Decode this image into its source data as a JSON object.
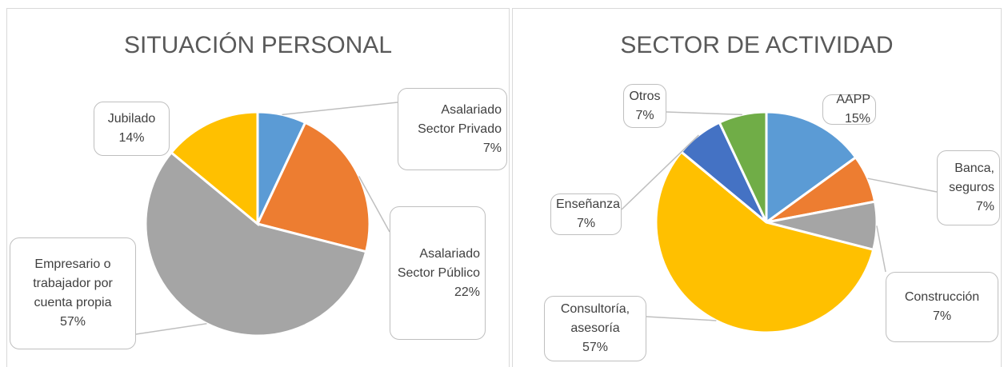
{
  "chart_data": [
    {
      "type": "pie",
      "title": "SITUACIÓN PERSONAL",
      "categories": [
        "Asalariado Sector Privado",
        "Asalariado Sector Público",
        "Empresario o trabajador por cuenta propia",
        "Jubilado"
      ],
      "values": [
        7,
        22,
        57,
        14
      ],
      "value_labels": [
        "7%",
        "22%",
        "57%",
        "14%"
      ],
      "colors": [
        "#5b9bd5",
        "#ed7d31",
        "#a5a5a5",
        "#ffc000"
      ]
    },
    {
      "type": "pie",
      "title": "SECTOR DE ACTIVIDAD",
      "categories": [
        "AAPP",
        "Banca, seguros",
        "Construcción",
        "Consultoría, asesoría",
        "Enseñanza",
        "Otros"
      ],
      "values": [
        15,
        7,
        7,
        57,
        7,
        7
      ],
      "value_labels": [
        "15%",
        "7%",
        "7%",
        "57%",
        "7%",
        "7%"
      ],
      "colors": [
        "#5b9bd5",
        "#ed7d31",
        "#a5a5a5",
        "#ffc000",
        "#4472c4",
        "#70ad47"
      ]
    }
  ]
}
